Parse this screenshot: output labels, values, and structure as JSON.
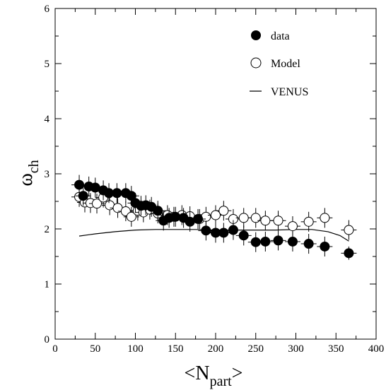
{
  "chart_data": {
    "type": "scatter",
    "title": "",
    "xlabel_main": "<N",
    "xlabel_sub": "part",
    "xlabel_end": ">",
    "ylabel_main": "ω",
    "ylabel_sub": "ch",
    "xlim": [
      0,
      400
    ],
    "ylim": [
      0,
      6
    ],
    "xticks": [
      0,
      50,
      100,
      150,
      200,
      250,
      300,
      350,
      400
    ],
    "yticks": [
      0,
      1,
      2,
      3,
      4,
      5,
      6
    ],
    "grid": false,
    "legend_position": "top-right",
    "series": [
      {
        "name": "data",
        "marker": "filled-circle",
        "points": [
          {
            "x": 30,
            "y": 2.8,
            "err": 0.18
          },
          {
            "x": 35,
            "y": 2.6,
            "err": 0.18
          },
          {
            "x": 42,
            "y": 2.77,
            "err": 0.18
          },
          {
            "x": 50,
            "y": 2.75,
            "err": 0.18
          },
          {
            "x": 60,
            "y": 2.7,
            "err": 0.18
          },
          {
            "x": 67,
            "y": 2.65,
            "err": 0.18
          },
          {
            "x": 77,
            "y": 2.65,
            "err": 0.18
          },
          {
            "x": 88,
            "y": 2.65,
            "err": 0.18
          },
          {
            "x": 95,
            "y": 2.6,
            "err": 0.18
          },
          {
            "x": 100,
            "y": 2.47,
            "err": 0.18
          },
          {
            "x": 107,
            "y": 2.42,
            "err": 0.18
          },
          {
            "x": 113,
            "y": 2.43,
            "err": 0.18
          },
          {
            "x": 120,
            "y": 2.4,
            "err": 0.18
          },
          {
            "x": 128,
            "y": 2.33,
            "err": 0.18
          },
          {
            "x": 135,
            "y": 2.15,
            "err": 0.18
          },
          {
            "x": 142,
            "y": 2.2,
            "err": 0.18
          },
          {
            "x": 150,
            "y": 2.22,
            "err": 0.18
          },
          {
            "x": 160,
            "y": 2.2,
            "err": 0.18
          },
          {
            "x": 168,
            "y": 2.13,
            "err": 0.18
          },
          {
            "x": 178,
            "y": 2.18,
            "err": 0.18
          },
          {
            "x": 188,
            "y": 1.97,
            "err": 0.18
          },
          {
            "x": 200,
            "y": 1.93,
            "err": 0.18
          },
          {
            "x": 210,
            "y": 1.93,
            "err": 0.18
          },
          {
            "x": 222,
            "y": 1.98,
            "err": 0.18
          },
          {
            "x": 235,
            "y": 1.88,
            "err": 0.18
          },
          {
            "x": 250,
            "y": 1.76,
            "err": 0.18
          },
          {
            "x": 262,
            "y": 1.77,
            "err": 0.18
          },
          {
            "x": 278,
            "y": 1.79,
            "err": 0.18
          },
          {
            "x": 296,
            "y": 1.77,
            "err": 0.18
          },
          {
            "x": 316,
            "y": 1.73,
            "err": 0.18
          },
          {
            "x": 336,
            "y": 1.68,
            "err": 0.18
          },
          {
            "x": 366,
            "y": 1.56,
            "err": 0.12
          }
        ]
      },
      {
        "name": "Model",
        "marker": "open-circle",
        "points": [
          {
            "x": 30,
            "y": 2.58,
            "err": 0.18
          },
          {
            "x": 37,
            "y": 2.48,
            "err": 0.18
          },
          {
            "x": 44,
            "y": 2.47,
            "err": 0.18
          },
          {
            "x": 52,
            "y": 2.46,
            "err": 0.18
          },
          {
            "x": 60,
            "y": 2.57,
            "err": 0.18
          },
          {
            "x": 68,
            "y": 2.43,
            "err": 0.18
          },
          {
            "x": 78,
            "y": 2.38,
            "err": 0.18
          },
          {
            "x": 88,
            "y": 2.32,
            "err": 0.18
          },
          {
            "x": 95,
            "y": 2.22,
            "err": 0.18
          },
          {
            "x": 103,
            "y": 2.33,
            "err": 0.18
          },
          {
            "x": 110,
            "y": 2.3,
            "err": 0.18
          },
          {
            "x": 118,
            "y": 2.35,
            "err": 0.18
          },
          {
            "x": 128,
            "y": 2.28,
            "err": 0.18
          },
          {
            "x": 140,
            "y": 2.25,
            "err": 0.18
          },
          {
            "x": 148,
            "y": 2.22,
            "err": 0.18
          },
          {
            "x": 158,
            "y": 2.25,
            "err": 0.18
          },
          {
            "x": 168,
            "y": 2.23,
            "err": 0.18
          },
          {
            "x": 180,
            "y": 2.18,
            "err": 0.18
          },
          {
            "x": 188,
            "y": 2.22,
            "err": 0.18
          },
          {
            "x": 200,
            "y": 2.25,
            "err": 0.18
          },
          {
            "x": 210,
            "y": 2.33,
            "err": 0.18
          },
          {
            "x": 222,
            "y": 2.18,
            "err": 0.18
          },
          {
            "x": 235,
            "y": 2.2,
            "err": 0.18
          },
          {
            "x": 250,
            "y": 2.2,
            "err": 0.18
          },
          {
            "x": 262,
            "y": 2.15,
            "err": 0.18
          },
          {
            "x": 278,
            "y": 2.15,
            "err": 0.18
          },
          {
            "x": 296,
            "y": 2.05,
            "err": 0.18
          },
          {
            "x": 316,
            "y": 2.13,
            "err": 0.18
          },
          {
            "x": 336,
            "y": 2.2,
            "err": 0.18
          },
          {
            "x": 366,
            "y": 1.98,
            "err": 0.18
          }
        ]
      },
      {
        "name": "VENUS",
        "marker": "line",
        "points": [
          {
            "x": 30,
            "y": 1.87
          },
          {
            "x": 50,
            "y": 1.91
          },
          {
            "x": 75,
            "y": 1.95
          },
          {
            "x": 100,
            "y": 1.98
          },
          {
            "x": 125,
            "y": 1.99
          },
          {
            "x": 150,
            "y": 1.99
          },
          {
            "x": 175,
            "y": 1.99
          },
          {
            "x": 200,
            "y": 1.98
          },
          {
            "x": 225,
            "y": 1.98
          },
          {
            "x": 250,
            "y": 1.98
          },
          {
            "x": 275,
            "y": 1.98
          },
          {
            "x": 300,
            "y": 1.99
          },
          {
            "x": 320,
            "y": 1.99
          },
          {
            "x": 340,
            "y": 1.95
          },
          {
            "x": 355,
            "y": 1.88
          },
          {
            "x": 366,
            "y": 1.78
          }
        ]
      }
    ]
  }
}
